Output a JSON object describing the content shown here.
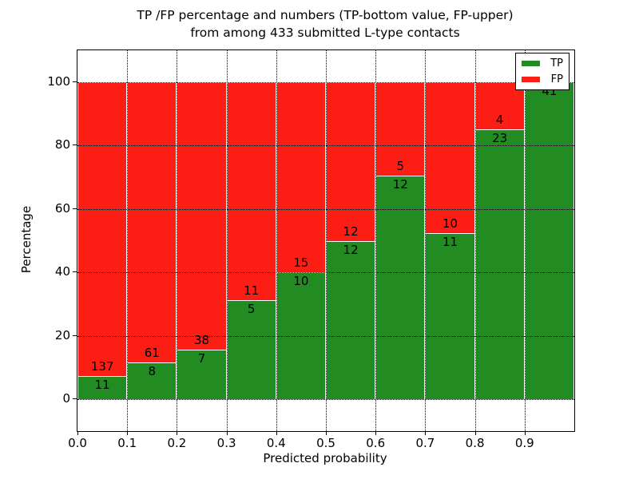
{
  "figure": {
    "title_line1": "TP /FP percentage and numbers (TP-bottom value, FP-upper)",
    "title_line2": "from among 433 submitted L-type contacts"
  },
  "axes": {
    "xlabel": "Predicted probability",
    "ylabel": "Percentage",
    "x_ticks": [
      "0.0",
      "0.1",
      "0.2",
      "0.3",
      "0.4",
      "0.5",
      "0.6",
      "0.7",
      "0.8",
      "0.9"
    ],
    "y_ticks": [
      0,
      20,
      40,
      60,
      80,
      100
    ],
    "xlim": [
      0.0,
      1.0
    ],
    "ylim": [
      -10,
      110
    ]
  },
  "legend": {
    "position": "upper right",
    "entries": [
      {
        "label": "TP",
        "color": "#228b22",
        "icon": "tp-swatch"
      },
      {
        "label": "FP",
        "color": "#fc1d14",
        "icon": "fp-swatch"
      }
    ]
  },
  "chart_data": {
    "type": "bar",
    "stacked": true,
    "normalized_to_percent": true,
    "title": "TP /FP percentage and numbers (TP-bottom value, FP-upper) from among 433 submitted L-type contacts",
    "xlabel": "Predicted probability",
    "ylabel": "Percentage",
    "grid": true,
    "legend_position": "upper right",
    "total_contacts": 433,
    "bin_edges": [
      0.0,
      0.1,
      0.2,
      0.3,
      0.4,
      0.5,
      0.6,
      0.7,
      0.8,
      0.9,
      1.0
    ],
    "categories": [
      "0.0-0.1",
      "0.1-0.2",
      "0.2-0.3",
      "0.3-0.4",
      "0.4-0.5",
      "0.5-0.6",
      "0.6-0.7",
      "0.7-0.8",
      "0.8-0.9",
      "0.9-1.0"
    ],
    "series": [
      {
        "name": "TP",
        "color": "#228b22",
        "counts": [
          11,
          8,
          7,
          5,
          10,
          12,
          12,
          11,
          23,
          41
        ]
      },
      {
        "name": "FP",
        "color": "#fc1d14",
        "counts": [
          137,
          61,
          38,
          11,
          15,
          12,
          5,
          10,
          4,
          0
        ]
      }
    ],
    "tp_percent": [
      7.43,
      11.59,
      15.56,
      31.25,
      40.0,
      50.0,
      70.59,
      52.38,
      85.19,
      100.0
    ],
    "ylim": [
      -10,
      110
    ],
    "annotation_note": "TP count printed just below each stack boundary, FP count just above"
  }
}
